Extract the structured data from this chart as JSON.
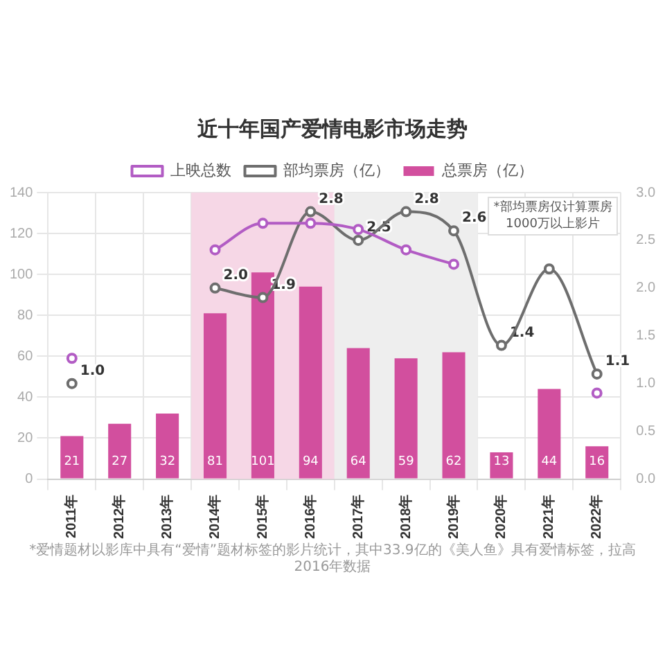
{
  "chart_data": {
    "type": "bar",
    "title": "近十年国产爱情电影市场走势",
    "categories": [
      "2011年",
      "2012年",
      "2013年",
      "2014年",
      "2015年",
      "2016年",
      "2017年",
      "2018年",
      "2019年",
      "2020年",
      "2021年",
      "2022年"
    ],
    "series": [
      {
        "name": "总票房（亿）",
        "color": "#d24f9e",
        "values": [
          21,
          27,
          32,
          81,
          101,
          94,
          64,
          59,
          62,
          13,
          44,
          16
        ],
        "value_labels": [
          "21",
          "27",
          "32",
          "81",
          "101",
          "94",
          "64",
          "59",
          "62",
          "13",
          "44",
          "16"
        ]
      },
      {
        "name": "上映总数",
        "type": "line",
        "color": "#b25cc4",
        "values": [
          59,
          null,
          null,
          112,
          125,
          125,
          122,
          112,
          105,
          null,
          null,
          42
        ]
      },
      {
        "name": "部均票房（亿）",
        "type": "line",
        "axis": "y2",
        "color": "#6e6e6e",
        "values": [
          1.0,
          null,
          null,
          2.0,
          1.9,
          2.8,
          2.5,
          2.8,
          2.6,
          1.4,
          2.2,
          1.1
        ],
        "value_labels": [
          "1.0",
          null,
          null,
          "2.0",
          "1.9",
          "2.8",
          "2.5",
          "2.8",
          "2.6",
          "1.4",
          null,
          "1.1"
        ]
      }
    ],
    "ylim": [
      0,
      140
    ],
    "yticks": [
      0,
      20,
      40,
      60,
      80,
      100,
      120,
      140
    ],
    "y2lim": [
      0,
      3
    ],
    "y2ticks": [
      {
        "value": 0,
        "label": "0.0"
      },
      {
        "value": 0.5,
        "label": "0.5"
      },
      {
        "value": 1,
        "label": "1.0"
      },
      {
        "value": 1.5,
        "label": "1.5"
      },
      {
        "value": 2,
        "label": "2.0"
      },
      {
        "value": 2.5,
        "label": "2.5"
      },
      {
        "value": 3,
        "label": "3.0"
      }
    ],
    "bands": [
      {
        "axis": "x",
        "from": "2014年",
        "to": "2016年",
        "color": "#f6d7e6"
      },
      {
        "axis": "x",
        "from": "2017年",
        "to": "2019年",
        "color": "#eeeeee"
      }
    ],
    "grid": true,
    "legend": "top",
    "marker": "circle",
    "line_style": "solid",
    "annotations": [
      "*部均票房仅计算票房1000万以上影片",
      "*爱情题材以影库中具有“爱情”题材标签的影片统计，其中33.9亿的《美人鱼》具有爱情标签，拉高2016年数据"
    ]
  }
}
